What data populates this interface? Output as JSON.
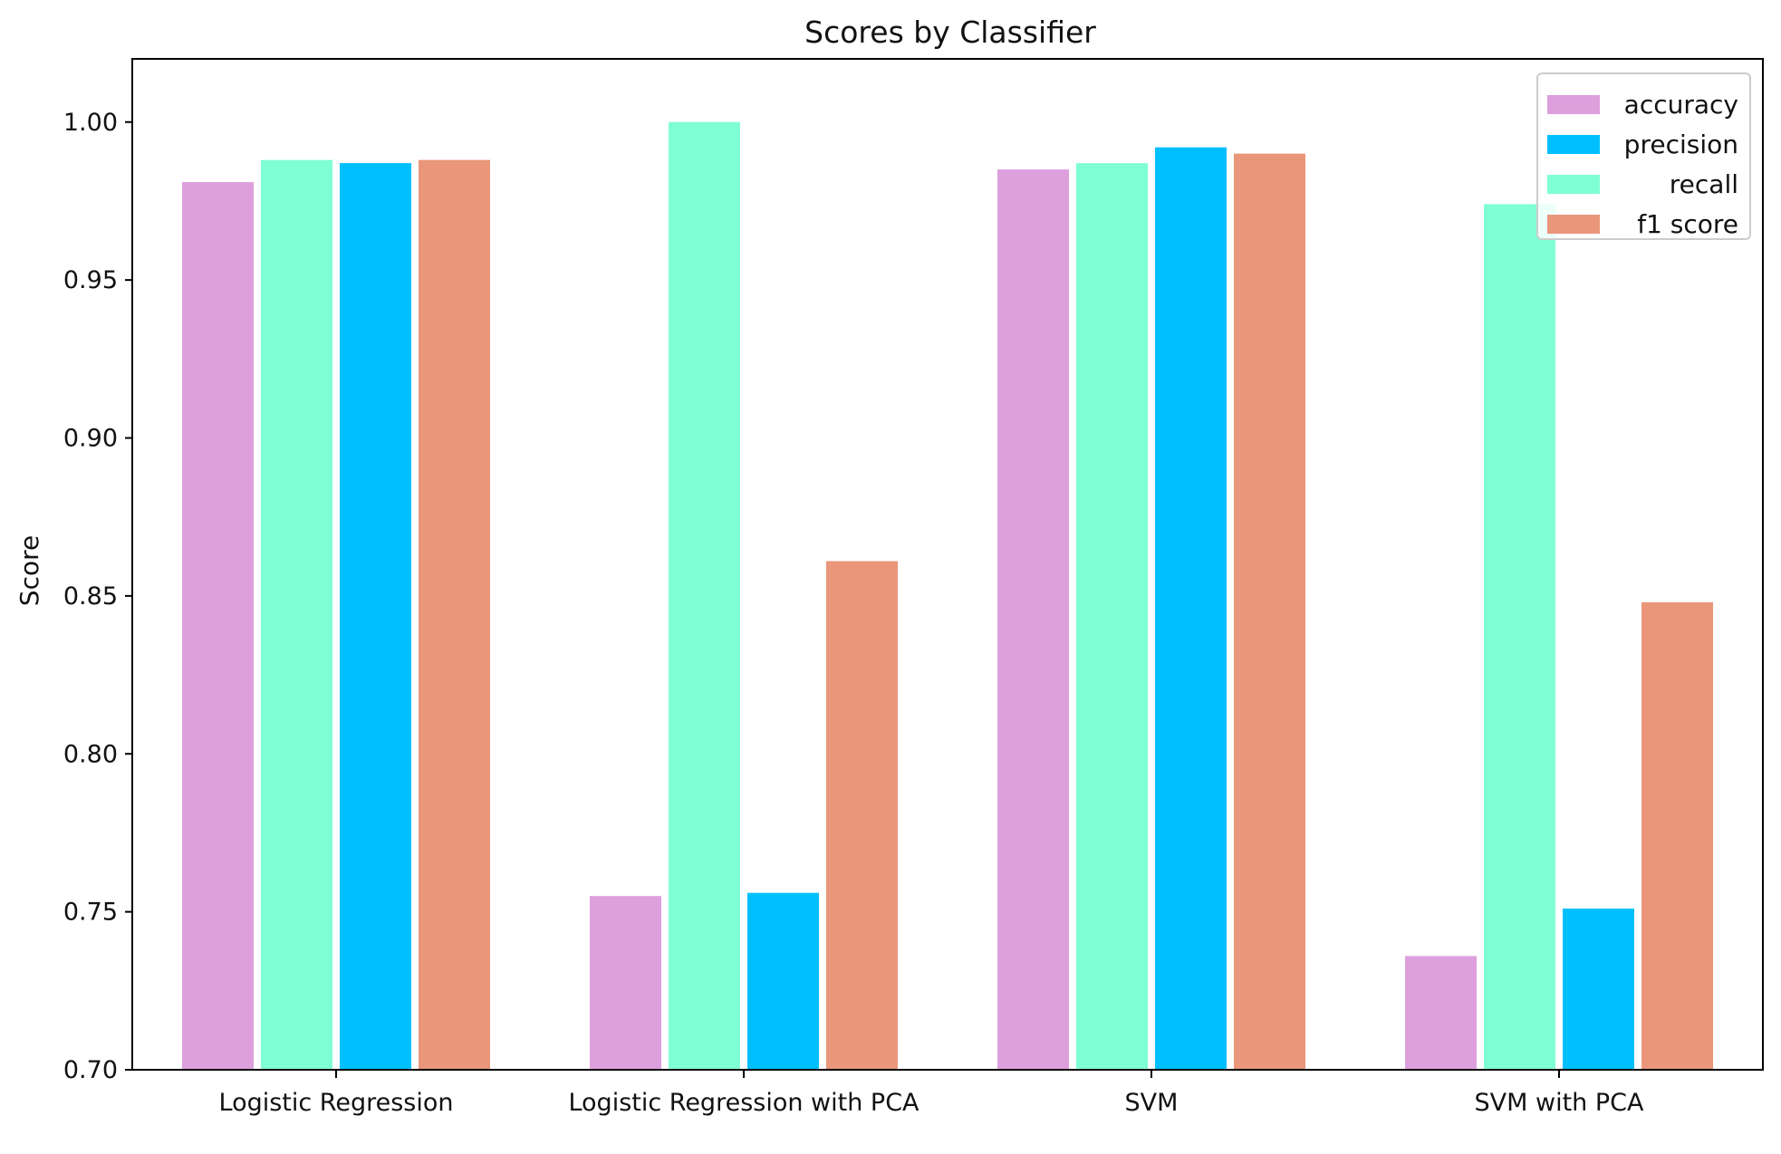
{
  "chart_data": {
    "type": "bar",
    "title": "Scores by Classifier",
    "xlabel": "",
    "ylabel": "Score",
    "ylim": [
      0.7,
      1.02
    ],
    "yticks": [
      "0.70",
      "0.75",
      "0.80",
      "0.85",
      "0.90",
      "0.95",
      "1.00"
    ],
    "categories": [
      "Logistic Regression",
      "Logistic Regression with PCA",
      "SVM",
      "SVM with PCA"
    ],
    "bar_order": [
      "accuracy",
      "recall",
      "precision",
      "f1 score"
    ],
    "legend_position": "top-right",
    "grid": false,
    "series": [
      {
        "name": "accuracy",
        "color": "#DDA0DD",
        "values": [
          0.981,
          0.755,
          0.985,
          0.736
        ]
      },
      {
        "name": "precision",
        "color": "#00BFFF",
        "values": [
          0.987,
          0.756,
          0.992,
          0.751
        ]
      },
      {
        "name": "recall",
        "color": "#7FFFD4",
        "values": [
          0.988,
          1.0,
          0.987,
          0.974
        ]
      },
      {
        "name": "f1 score",
        "color": "#E9967A",
        "values": [
          0.988,
          0.861,
          0.99,
          0.848
        ]
      }
    ]
  }
}
